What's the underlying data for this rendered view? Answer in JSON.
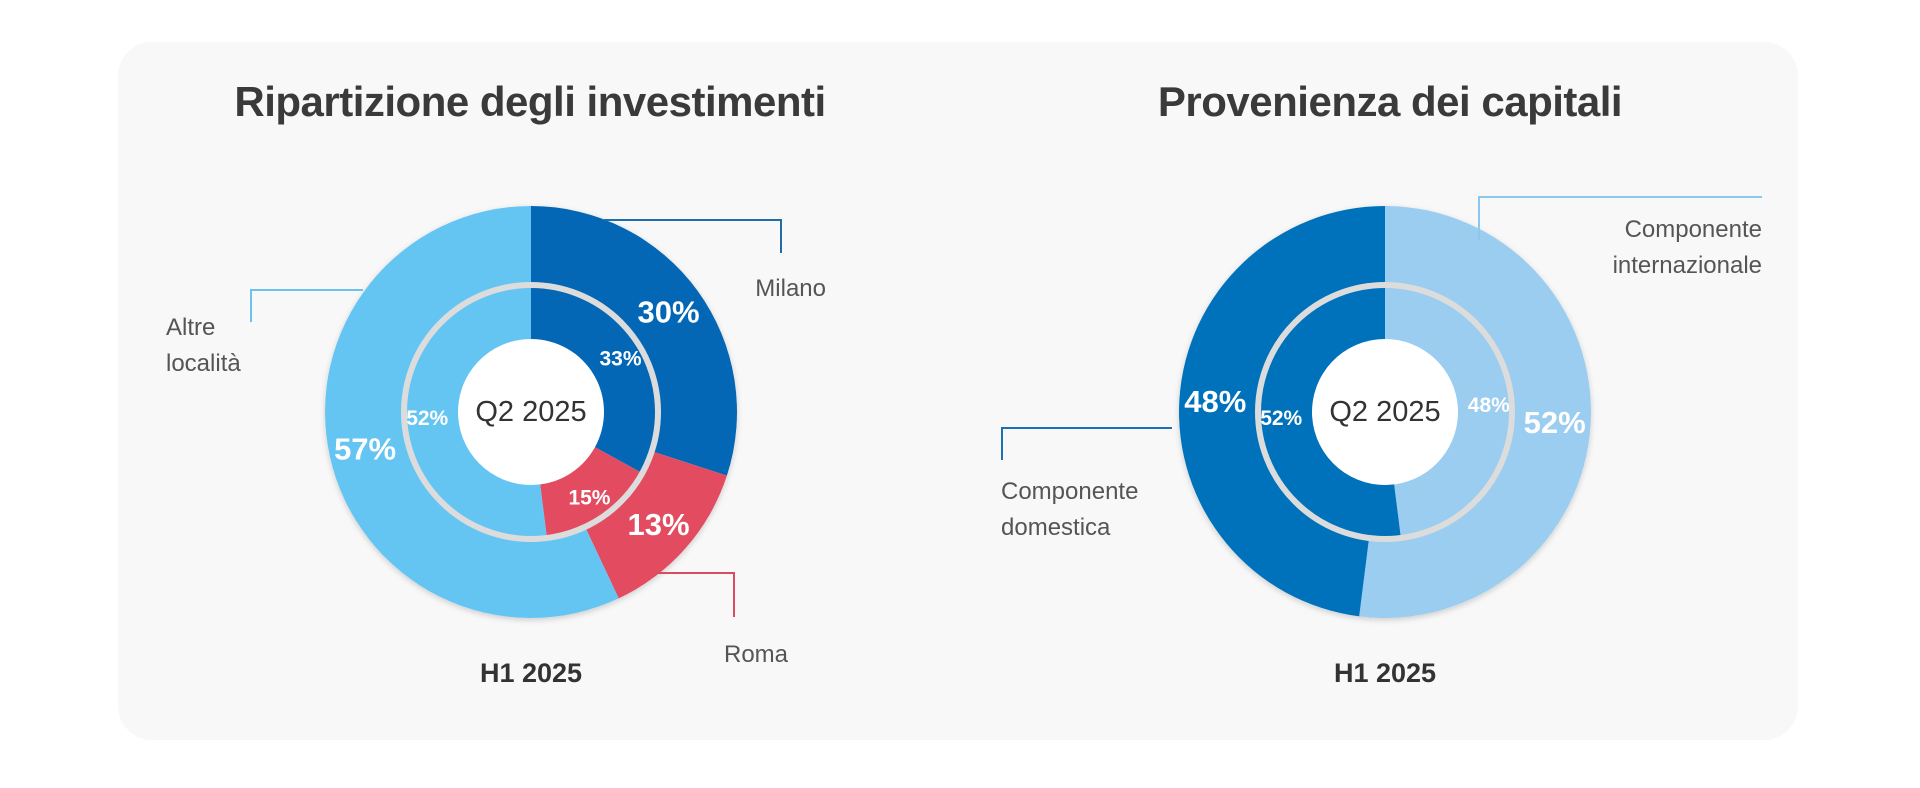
{
  "chart_data": [
    {
      "type": "donut",
      "title": "Ripartizione degli investimenti",
      "center_label": "Q2 2025",
      "outer_ring_label": "H1 2025",
      "unit": "%",
      "series": [
        {
          "name": "H1 2025",
          "ring": "outer",
          "slices": [
            {
              "label": "Milano",
              "value": 30,
              "display": "30%",
              "color": "#0467b5"
            },
            {
              "label": "Roma",
              "value": 13,
              "display": "13%",
              "color": "#e24b60"
            },
            {
              "label": "Altre località",
              "value": 57,
              "display": "57%",
              "color": "#64c5f3"
            }
          ]
        },
        {
          "name": "Q2 2025",
          "ring": "inner",
          "slices": [
            {
              "label": "Milano",
              "value": 33,
              "display": "33%",
              "color": "#0467b5"
            },
            {
              "label": "Roma",
              "value": 15,
              "display": "15%",
              "color": "#e24b60"
            },
            {
              "label": "Altre località",
              "value": 52,
              "display": "52%",
              "color": "#64c5f3"
            }
          ]
        }
      ],
      "category_labels": {
        "Milano": [
          "Milano"
        ],
        "Roma": [
          "Roma"
        ],
        "Altre località": [
          "Altre",
          "località"
        ]
      }
    },
    {
      "type": "donut",
      "title": "Provenienza dei capitali",
      "center_label": "Q2 2025",
      "outer_ring_label": "H1 2025",
      "unit": "%",
      "series": [
        {
          "name": "H1 2025",
          "ring": "outer",
          "slices": [
            {
              "label": "Componente internazionale",
              "value": 52,
              "display": "52%",
              "color": "#9acdf0"
            },
            {
              "label": "Componente domestica",
              "value": 48,
              "display": "48%",
              "color": "#0072bb"
            }
          ]
        },
        {
          "name": "Q2 2025",
          "ring": "inner",
          "slices": [
            {
              "label": "Componente internazionale",
              "value": 48,
              "display": "48%",
              "color": "#9acdf0"
            },
            {
              "label": "Componente domestica",
              "value": 52,
              "display": "52%",
              "color": "#0072bb"
            }
          ]
        }
      ],
      "category_labels": {
        "Componente internazionale": [
          "Componente",
          "internazionale"
        ],
        "Componente domestica": [
          "Componente",
          "domestica"
        ]
      }
    }
  ]
}
